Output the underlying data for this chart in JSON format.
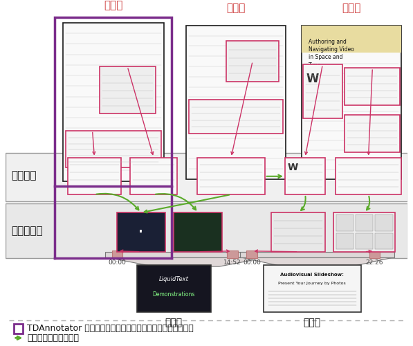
{
  "bg_color": "#ffffff",
  "paper_border": "#1a1a1a",
  "red_box": "#cc3366",
  "purple_border": "#7B2D8B",
  "green_arrow": "#5aaa2a",
  "red_arrow": "#cc3366",
  "label_fontsize": 10,
  "section_label_fontsize": 11,
  "legend_fontsize": 9,
  "legend1_text": "TDAnnotator で論文１を開いた場合に閲覧できるコンテンツ",
  "legend2_text": "部分要素間の関係情報",
  "paper_labels": [
    "論文１",
    "論文２",
    "論文３"
  ],
  "section1_label": "論文部分",
  "section2_label": "映像シーン",
  "video_labels": [
    "映像１",
    "映像２"
  ],
  "timestamps1": [
    "00:00",
    "14:52"
  ],
  "timestamps2": [
    "00:00",
    "22:26"
  ]
}
